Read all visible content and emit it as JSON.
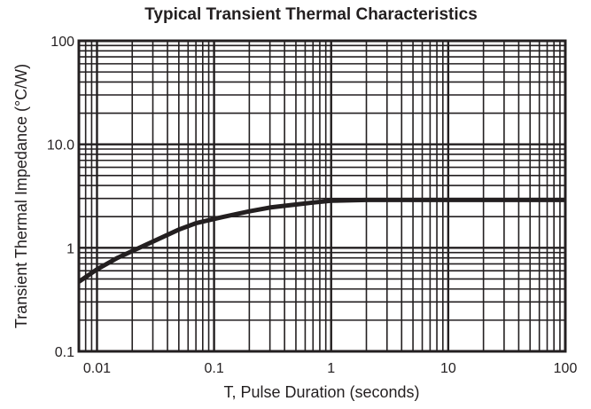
{
  "chart_data": {
    "type": "line",
    "title": "Typical Transient Thermal Characteristics",
    "xlabel": "T, Pulse Duration (seconds)",
    "ylabel": "Transient Thermal Impedance (°C/W)",
    "xscale": "log",
    "yscale": "log",
    "xlim": [
      0.007,
      100
    ],
    "ylim": [
      0.1,
      100
    ],
    "grid": true,
    "x_ticks": [
      {
        "value": 0.01,
        "label": "0.01"
      },
      {
        "value": 0.1,
        "label": "0.1"
      },
      {
        "value": 1,
        "label": "1"
      },
      {
        "value": 10,
        "label": "10"
      },
      {
        "value": 100,
        "label": "100"
      }
    ],
    "y_ticks": [
      {
        "value": 0.1,
        "label": "0.1"
      },
      {
        "value": 1,
        "label": "1"
      },
      {
        "value": 10,
        "label": "10.0"
      },
      {
        "value": 100,
        "label": "100"
      }
    ],
    "series": [
      {
        "color": "#231f20",
        "x": [
          0.007,
          0.01,
          0.015,
          0.02,
          0.03,
          0.05,
          0.07,
          0.1,
          0.15,
          0.2,
          0.3,
          0.5,
          0.7,
          1,
          1.5,
          2,
          3,
          5,
          10,
          20,
          50,
          100
        ],
        "y": [
          0.47,
          0.62,
          0.8,
          0.93,
          1.15,
          1.5,
          1.73,
          1.9,
          2.1,
          2.25,
          2.45,
          2.62,
          2.74,
          2.85,
          2.88,
          2.9,
          2.9,
          2.9,
          2.9,
          2.9,
          2.9,
          2.9
        ]
      }
    ]
  }
}
